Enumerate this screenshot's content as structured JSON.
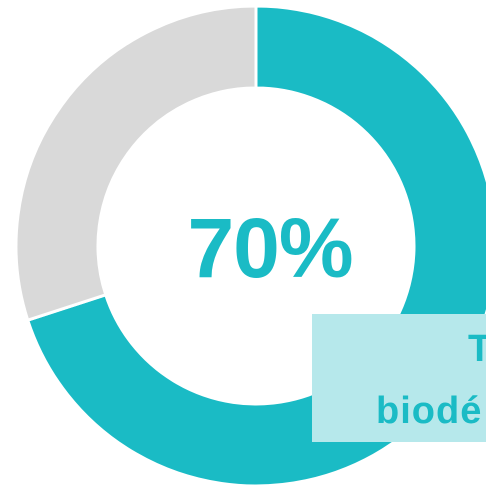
{
  "chart_data": {
    "type": "pie",
    "variant": "donut",
    "slices": [
      {
        "value": 70
      },
      {
        "value": 30
      }
    ],
    "center_label": "70%",
    "callout": {
      "line1": "T",
      "line2": "biodé"
    }
  },
  "colors": {
    "primary": "#1ABBC5",
    "remainder": "#D9D9D9",
    "callout_bg": "#B6E8EB",
    "separator": "#FFFFFF"
  }
}
